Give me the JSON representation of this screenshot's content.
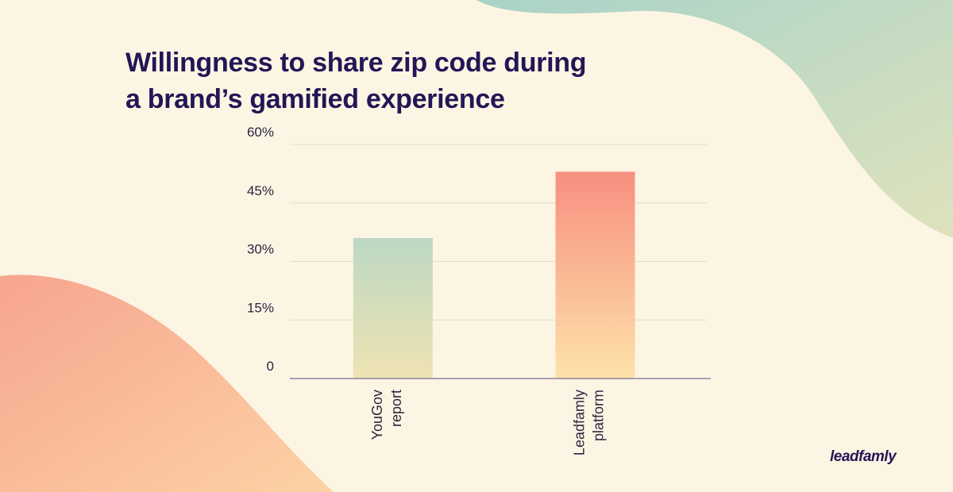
{
  "title_lines": [
    "Willingness to share zip code during",
    "a brand’s gamified experience"
  ],
  "brand": "leadfamly",
  "colors": {
    "background": "#fdf5e3",
    "title": "#231656",
    "axis": "#8c84a4",
    "grid": "#e2dccb",
    "tick": "#2a2540",
    "bar1_top": "#bcd8c4",
    "bar1_bottom": "#efe3b2",
    "bar2_top": "#f78f80",
    "bar2_bottom": "#fde2aa"
  },
  "chart_data": {
    "type": "bar",
    "title": "Willingness to share zip code during a brand’s gamified experience",
    "categories": [
      [
        "YouGov",
        "report"
      ],
      [
        "Leadfamly",
        "platform"
      ]
    ],
    "values": [
      36,
      53
    ],
    "unit": "%",
    "ylim": [
      0,
      60
    ],
    "yticks": [
      {
        "value": 0,
        "label": "0"
      },
      {
        "value": 15,
        "label": "15%"
      },
      {
        "value": 30,
        "label": "30%"
      },
      {
        "value": 45,
        "label": "45%"
      },
      {
        "value": 60,
        "label": "60%"
      }
    ],
    "grid": true,
    "legend": "none"
  }
}
